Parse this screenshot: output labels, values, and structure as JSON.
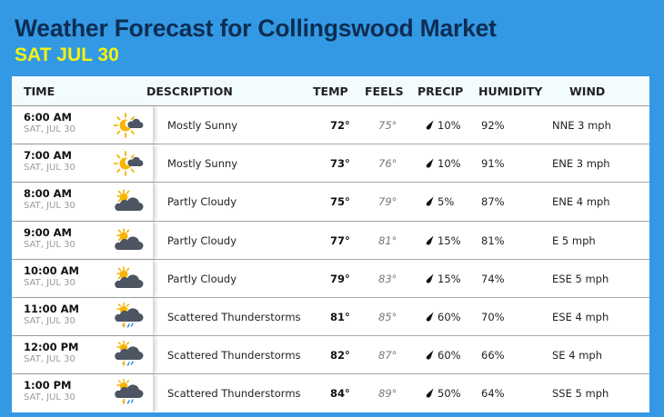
{
  "header": {
    "title": "Weather Forecast for Collingswood Market",
    "date": "SAT JUL 30"
  },
  "colors": {
    "background": "#3399e4",
    "title": "#0d2d52",
    "date": "#f5f20e",
    "header_row": "#f2fbfd"
  },
  "table": {
    "columns": {
      "time": "TIME",
      "description": "DESCRIPTION",
      "temp": "TEMP",
      "feels": "FEELS",
      "precip": "PRECIP",
      "humidity": "HUMIDITY",
      "wind": "WIND"
    },
    "rows": [
      {
        "time": "6:00 AM",
        "day": "SAT, JUL 30",
        "icon": "mostly-sunny-icon",
        "description": "Mostly Sunny",
        "temp": "72°",
        "feels": "75°",
        "precip": "10%",
        "humidity": "92%",
        "wind": "NNE 3 mph"
      },
      {
        "time": "7:00 AM",
        "day": "SAT, JUL 30",
        "icon": "mostly-sunny-icon",
        "description": "Mostly Sunny",
        "temp": "73°",
        "feels": "76°",
        "precip": "10%",
        "humidity": "91%",
        "wind": "ENE 3 mph"
      },
      {
        "time": "8:00 AM",
        "day": "SAT, JUL 30",
        "icon": "partly-cloudy-icon",
        "description": "Partly Cloudy",
        "temp": "75°",
        "feels": "79°",
        "precip": "5%",
        "humidity": "87%",
        "wind": "ENE 4 mph"
      },
      {
        "time": "9:00 AM",
        "day": "SAT, JUL 30",
        "icon": "partly-cloudy-icon",
        "description": "Partly Cloudy",
        "temp": "77°",
        "feels": "81°",
        "precip": "15%",
        "humidity": "81%",
        "wind": "E 5 mph"
      },
      {
        "time": "10:00 AM",
        "day": "SAT, JUL 30",
        "icon": "partly-cloudy-icon",
        "description": "Partly Cloudy",
        "temp": "79°",
        "feels": "83°",
        "precip": "15%",
        "humidity": "74%",
        "wind": "ESE 5 mph"
      },
      {
        "time": "11:00 AM",
        "day": "SAT, JUL 30",
        "icon": "scattered-thunderstorms-icon",
        "description": "Scattered Thunderstorms",
        "temp": "81°",
        "feels": "85°",
        "precip": "60%",
        "humidity": "70%",
        "wind": "ESE 4 mph"
      },
      {
        "time": "12:00 PM",
        "day": "SAT, JUL 30",
        "icon": "scattered-thunderstorms-icon",
        "description": "Scattered Thunderstorms",
        "temp": "82°",
        "feels": "87°",
        "precip": "60%",
        "humidity": "66%",
        "wind": "SE 4 mph"
      },
      {
        "time": "1:00 PM",
        "day": "SAT, JUL 30",
        "icon": "scattered-thunderstorms-icon",
        "description": "Scattered Thunderstorms",
        "temp": "84°",
        "feels": "89°",
        "precip": "50%",
        "humidity": "64%",
        "wind": "SSE 5 mph"
      }
    ]
  }
}
